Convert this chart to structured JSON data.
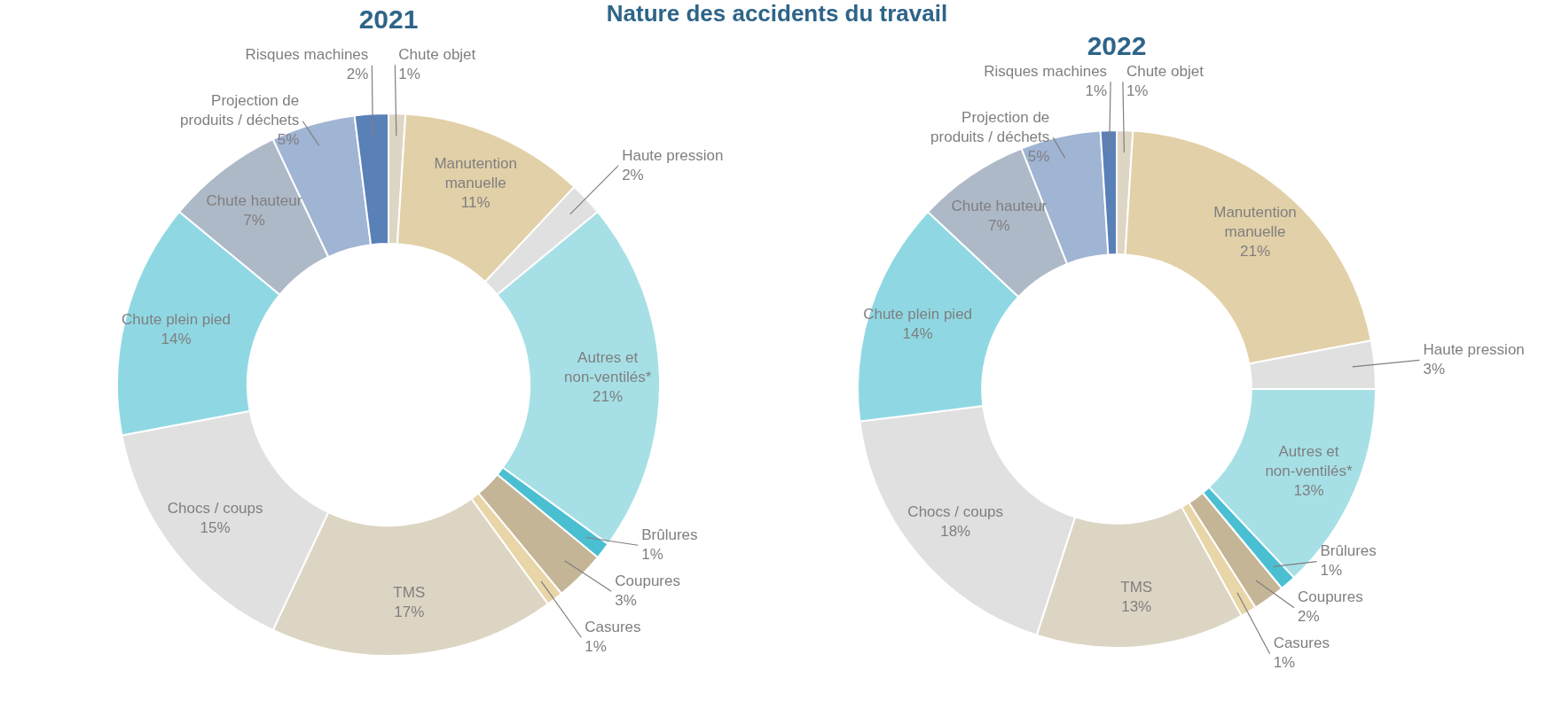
{
  "chart_data": [
    {
      "type": "donut",
      "title": "Nature des accidents du travail",
      "subtitle": "2021",
      "legend": false,
      "categories": [
        "Chute objet",
        "Manutention manuelle",
        "Haute pression",
        "Autres et non-ventilés*",
        "Brûlures",
        "Coupures",
        "Casures",
        "TMS",
        "Chocs / coups",
        "Chute plein pied",
        "Chute hauteur",
        "Projection de produits / déchets",
        "Risques machines"
      ],
      "values": [
        1,
        11,
        2,
        21,
        1,
        3,
        1,
        17,
        15,
        14,
        7,
        5,
        2
      ],
      "value_labels": [
        "1%",
        "11%",
        "2%",
        "21%",
        "1%",
        "3%",
        "1%",
        "17%",
        "15%",
        "14%",
        "7%",
        "5%",
        "2%"
      ],
      "colors": [
        "#ddd6c4",
        "#e2d0a8",
        "#e0e0e0",
        "#a6e0e6",
        "#4bbfd2",
        "#c4b596",
        "#e8d5a8",
        "#ddd5c4",
        "#e0e0e0",
        "#8fd8e3",
        "#aeb9c8",
        "#a0b4d3",
        "#5a80b8"
      ]
    },
    {
      "type": "donut",
      "title": "2022",
      "legend": false,
      "categories": [
        "Chute objet",
        "Manutention manuelle",
        "Haute pression",
        "Autres et non-ventilés*",
        "Brûlures",
        "Coupures",
        "Casures",
        "TMS",
        "Chocs / coups",
        "Chute plein pied",
        "Chute hauteur",
        "Projection de produits / déchets",
        "Risques machines"
      ],
      "values": [
        1,
        21,
        3,
        13,
        1,
        2,
        1,
        13,
        18,
        14,
        7,
        5,
        1
      ],
      "value_labels": [
        "1%",
        "21%",
        "3%",
        "13%",
        "1%",
        "2%",
        "1%",
        "13%",
        "18%",
        "14%",
        "7%",
        "5%",
        "1%"
      ],
      "colors": [
        "#ddd6c4",
        "#e2d0a8",
        "#e0e0e0",
        "#a6e0e6",
        "#4bbfd2",
        "#c4b596",
        "#e8d5a8",
        "#ddd5c4",
        "#e0e0e0",
        "#8fd8e3",
        "#aeb9c8",
        "#a0b4d3",
        "#5a80b8"
      ]
    }
  ]
}
